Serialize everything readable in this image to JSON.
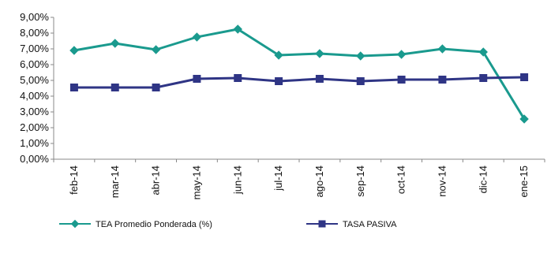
{
  "chart_data": {
    "type": "line",
    "categories": [
      "feb-14",
      "mar-14",
      "abr-14",
      "may-14",
      "jun-14",
      "jul-14",
      "ago-14",
      "sep-14",
      "oct-14",
      "nov-14",
      "dic-14",
      "ene-15"
    ],
    "ylim": [
      0,
      9
    ],
    "yticks": [
      0,
      1,
      2,
      3,
      4,
      5,
      6,
      7,
      8,
      9
    ],
    "ytick_labels": [
      "0,00%",
      "1,00%",
      "2,00%",
      "3,00%",
      "4,00%",
      "5,00%",
      "6,00%",
      "7,00%",
      "8,00%",
      "9,00%"
    ],
    "grid": false,
    "legend_position": "bottom",
    "series": [
      {
        "name": "TEA Promedio Ponderada (%)",
        "color": "#1a9a8e",
        "marker": "diamond",
        "values": [
          6.9,
          7.35,
          6.95,
          7.75,
          8.25,
          6.6,
          6.7,
          6.55,
          6.65,
          7.0,
          6.8,
          2.55
        ]
      },
      {
        "name": "TASA PASIVA",
        "color": "#2f3585",
        "marker": "square",
        "values": [
          4.55,
          4.55,
          4.55,
          5.1,
          5.15,
          4.95,
          5.1,
          4.95,
          5.05,
          5.05,
          5.15,
          5.2
        ]
      }
    ]
  }
}
